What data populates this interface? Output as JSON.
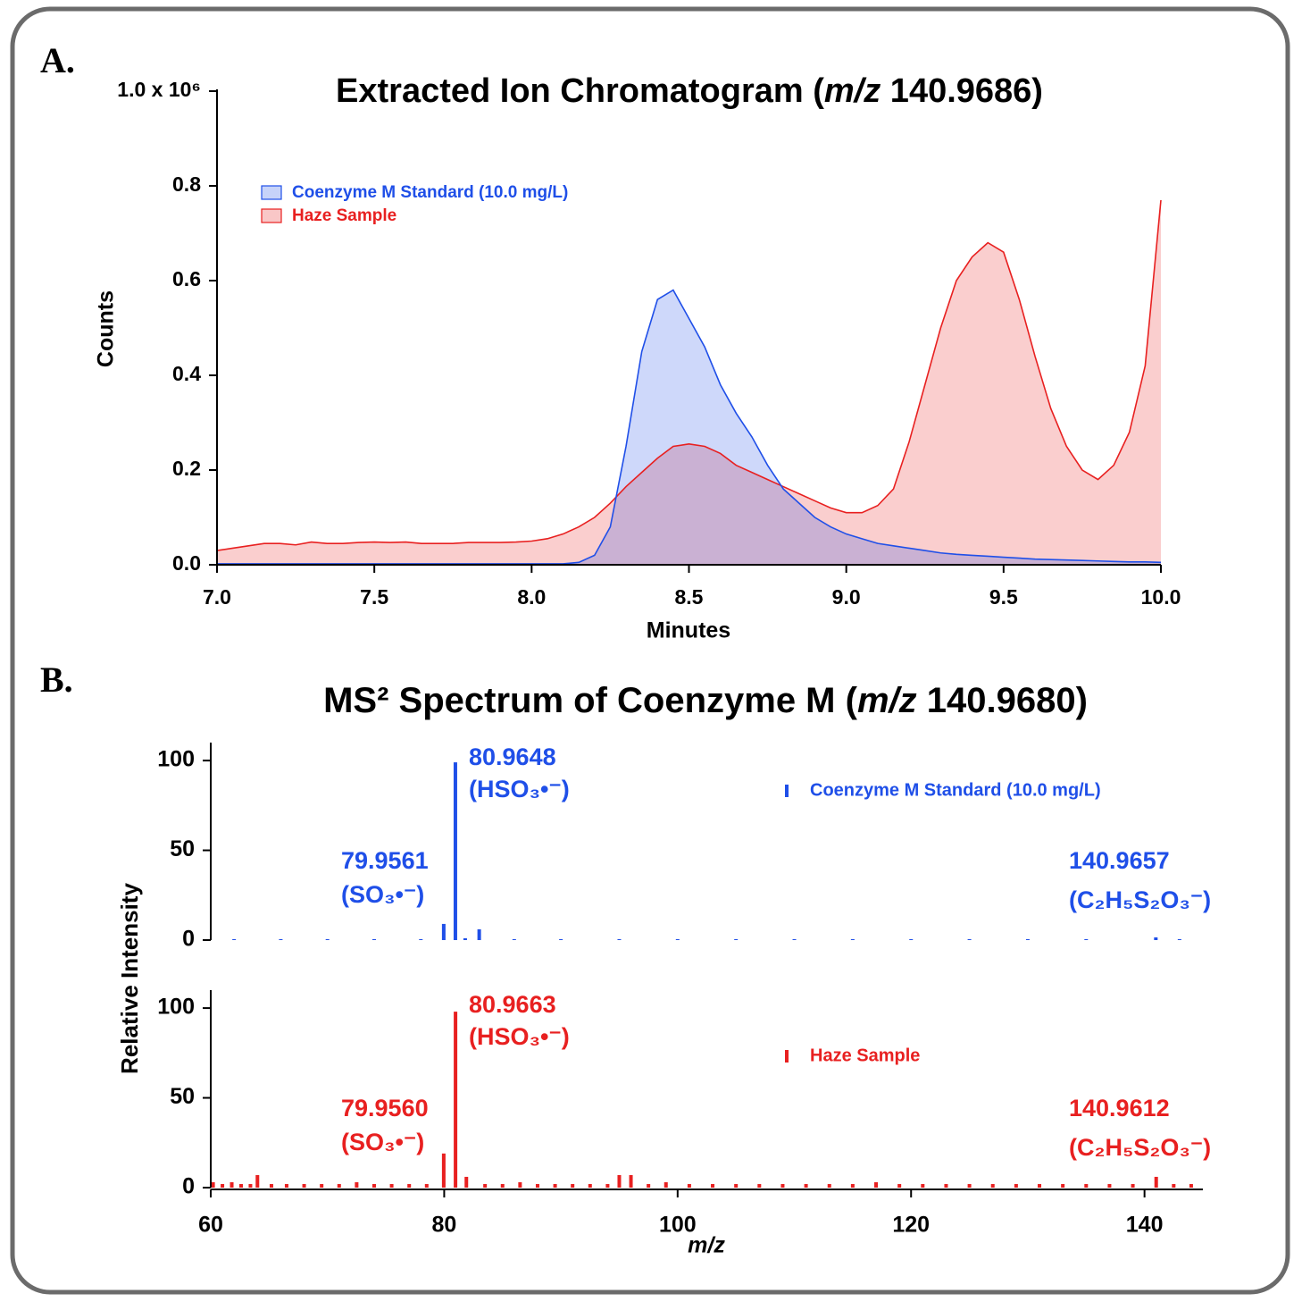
{
  "chart_data": [
    {
      "type": "area",
      "label": "A.",
      "title": [
        "Extracted Ion Chromatogram (",
        "m/z",
        " 140.9686)"
      ],
      "xlabel": "Minutes",
      "ylabel": "Counts",
      "x": [
        7.0,
        7.05,
        7.1,
        7.15,
        7.2,
        7.25,
        7.3,
        7.35,
        7.4,
        7.45,
        7.5,
        7.55,
        7.6,
        7.65,
        7.7,
        7.75,
        7.8,
        7.85,
        7.9,
        7.95,
        8.0,
        8.05,
        8.1,
        8.15,
        8.2,
        8.25,
        8.3,
        8.35,
        8.4,
        8.45,
        8.5,
        8.55,
        8.6,
        8.65,
        8.7,
        8.75,
        8.8,
        8.85,
        8.9,
        8.95,
        9.0,
        9.05,
        9.1,
        9.15,
        9.2,
        9.25,
        9.3,
        9.35,
        9.4,
        9.45,
        9.5,
        9.55,
        9.6,
        9.65,
        9.7,
        9.75,
        9.8,
        9.85,
        9.9,
        9.95,
        10.0
      ],
      "xlim": [
        7.0,
        10.0
      ],
      "xticks": [
        {
          "value": 7.0,
          "label": "7.0"
        },
        7.5,
        {
          "value": 8.0,
          "label": "8.0"
        },
        8.5,
        {
          "value": 9.0,
          "label": "9.0"
        },
        9.5,
        {
          "value": 10.0,
          "label": "10.0"
        }
      ],
      "ylim": [
        0,
        1.0
      ],
      "yticks": [
        {
          "value": 0,
          "label": "0.0"
        },
        0.2,
        0.4,
        0.6,
        0.8,
        {
          "value": 1.0,
          "label": "1.0 x 10⁶"
        }
      ],
      "legend": "upper left",
      "series": [
        {
          "name": "Coenzyme M Standard (10.0 mg/L)",
          "color": "#1f4fe8",
          "values": [
            0.002,
            0.002,
            0.002,
            0.002,
            0.002,
            0.002,
            0.002,
            0.002,
            0.002,
            0.002,
            0.002,
            0.002,
            0.002,
            0.002,
            0.002,
            0.002,
            0.002,
            0.002,
            0.002,
            0.002,
            0.002,
            0.002,
            0.002,
            0.005,
            0.02,
            0.08,
            0.25,
            0.45,
            0.56,
            0.58,
            0.52,
            0.46,
            0.38,
            0.32,
            0.27,
            0.21,
            0.16,
            0.13,
            0.1,
            0.08,
            0.065,
            0.055,
            0.045,
            0.04,
            0.035,
            0.03,
            0.025,
            0.022,
            0.02,
            0.018,
            0.016,
            0.014,
            0.012,
            0.011,
            0.01,
            0.009,
            0.008,
            0.007,
            0.006,
            0.006,
            0.005
          ]
        },
        {
          "name": "Haze Sample",
          "color": "#e82020",
          "values": [
            0.03,
            0.035,
            0.04,
            0.045,
            0.045,
            0.042,
            0.048,
            0.045,
            0.045,
            0.047,
            0.048,
            0.047,
            0.048,
            0.045,
            0.045,
            0.045,
            0.047,
            0.047,
            0.047,
            0.048,
            0.05,
            0.055,
            0.065,
            0.08,
            0.1,
            0.13,
            0.165,
            0.195,
            0.225,
            0.25,
            0.255,
            0.25,
            0.235,
            0.21,
            0.195,
            0.18,
            0.165,
            0.15,
            0.135,
            0.12,
            0.11,
            0.11,
            0.125,
            0.16,
            0.26,
            0.38,
            0.5,
            0.6,
            0.65,
            0.68,
            0.66,
            0.56,
            0.44,
            0.33,
            0.25,
            0.2,
            0.18,
            0.21,
            0.28,
            0.42,
            0.77
          ]
        }
      ]
    },
    {
      "type": "spectrum",
      "label": "B.",
      "title": [
        "MS² Spectrum of Coenzyme M (",
        "m/z",
        " 140.9680)"
      ],
      "xlabel": "m/z",
      "ylabel": "Relative Intensity",
      "xlim": [
        60,
        145
      ],
      "xticks": [
        60,
        80,
        100,
        120,
        140
      ],
      "ylim": [
        0,
        110
      ],
      "yticks": [
        0,
        50,
        100
      ],
      "series": [
        {
          "name": "Coenzyme M Standard (10.0 mg/L)",
          "color": "#1f4fe8",
          "x": [
            62,
            66,
            70,
            74,
            78,
            79.96,
            80.96,
            81.8,
            83.0,
            86,
            90,
            95,
            100,
            105,
            110,
            115,
            120,
            125,
            130,
            135,
            140.97,
            143
          ],
          "values": [
            0.5,
            0.5,
            0.5,
            0.5,
            0.5,
            9,
            99,
            1,
            6,
            0.5,
            0.5,
            0.5,
            0.5,
            0.5,
            0.5,
            0.5,
            0.5,
            0.5,
            0.5,
            0.5,
            1.5,
            0.5
          ],
          "annotations": [
            {
              "label": "79.9561",
              "ion": "(SO₃•⁻)"
            },
            {
              "label": "80.9648",
              "ion": "(HSO₃•⁻)"
            },
            {
              "label": "140.9657",
              "ion": "(C₂H₅S₂O₃⁻)"
            }
          ]
        },
        {
          "name": "Haze Sample",
          "color": "#e82020",
          "x": [
            60.2,
            61.0,
            61.8,
            62.6,
            63.4,
            64.0,
            65.2,
            66.5,
            68.0,
            69.5,
            71.0,
            72.5,
            74.0,
            75.5,
            77.0,
            78.5,
            79.96,
            80.97,
            81.9,
            83.5,
            85.0,
            86.5,
            88.0,
            89.5,
            91.0,
            92.5,
            94.0,
            95.0,
            96.0,
            97.5,
            99.0,
            101.0,
            103.0,
            105.0,
            107.0,
            109.0,
            111.0,
            113.0,
            115.0,
            117.0,
            119.0,
            121.0,
            123.0,
            125.0,
            127.0,
            129.0,
            131.0,
            133.0,
            135.0,
            137.0,
            139.0,
            141.0,
            142.5,
            144.0
          ],
          "values": [
            3,
            2,
            3,
            2,
            2,
            7,
            2,
            2,
            2,
            2,
            2,
            3,
            2,
            2,
            2,
            2,
            19,
            98,
            6,
            2,
            2,
            3,
            2,
            2,
            2,
            2,
            2,
            7,
            7,
            2,
            3,
            2,
            2,
            2,
            2,
            2,
            2,
            2,
            2,
            3,
            2,
            2,
            2,
            2,
            2,
            2,
            2,
            2,
            2,
            2,
            2,
            6,
            2,
            2
          ],
          "annotations": [
            {
              "label": "79.9560",
              "ion": "(SO₃•⁻)"
            },
            {
              "label": "80.9663",
              "ion": "(HSO₃•⁻)"
            },
            {
              "label": "140.9612",
              "ion": "(C₂H₅S₂O₃⁻)"
            }
          ]
        }
      ]
    }
  ]
}
